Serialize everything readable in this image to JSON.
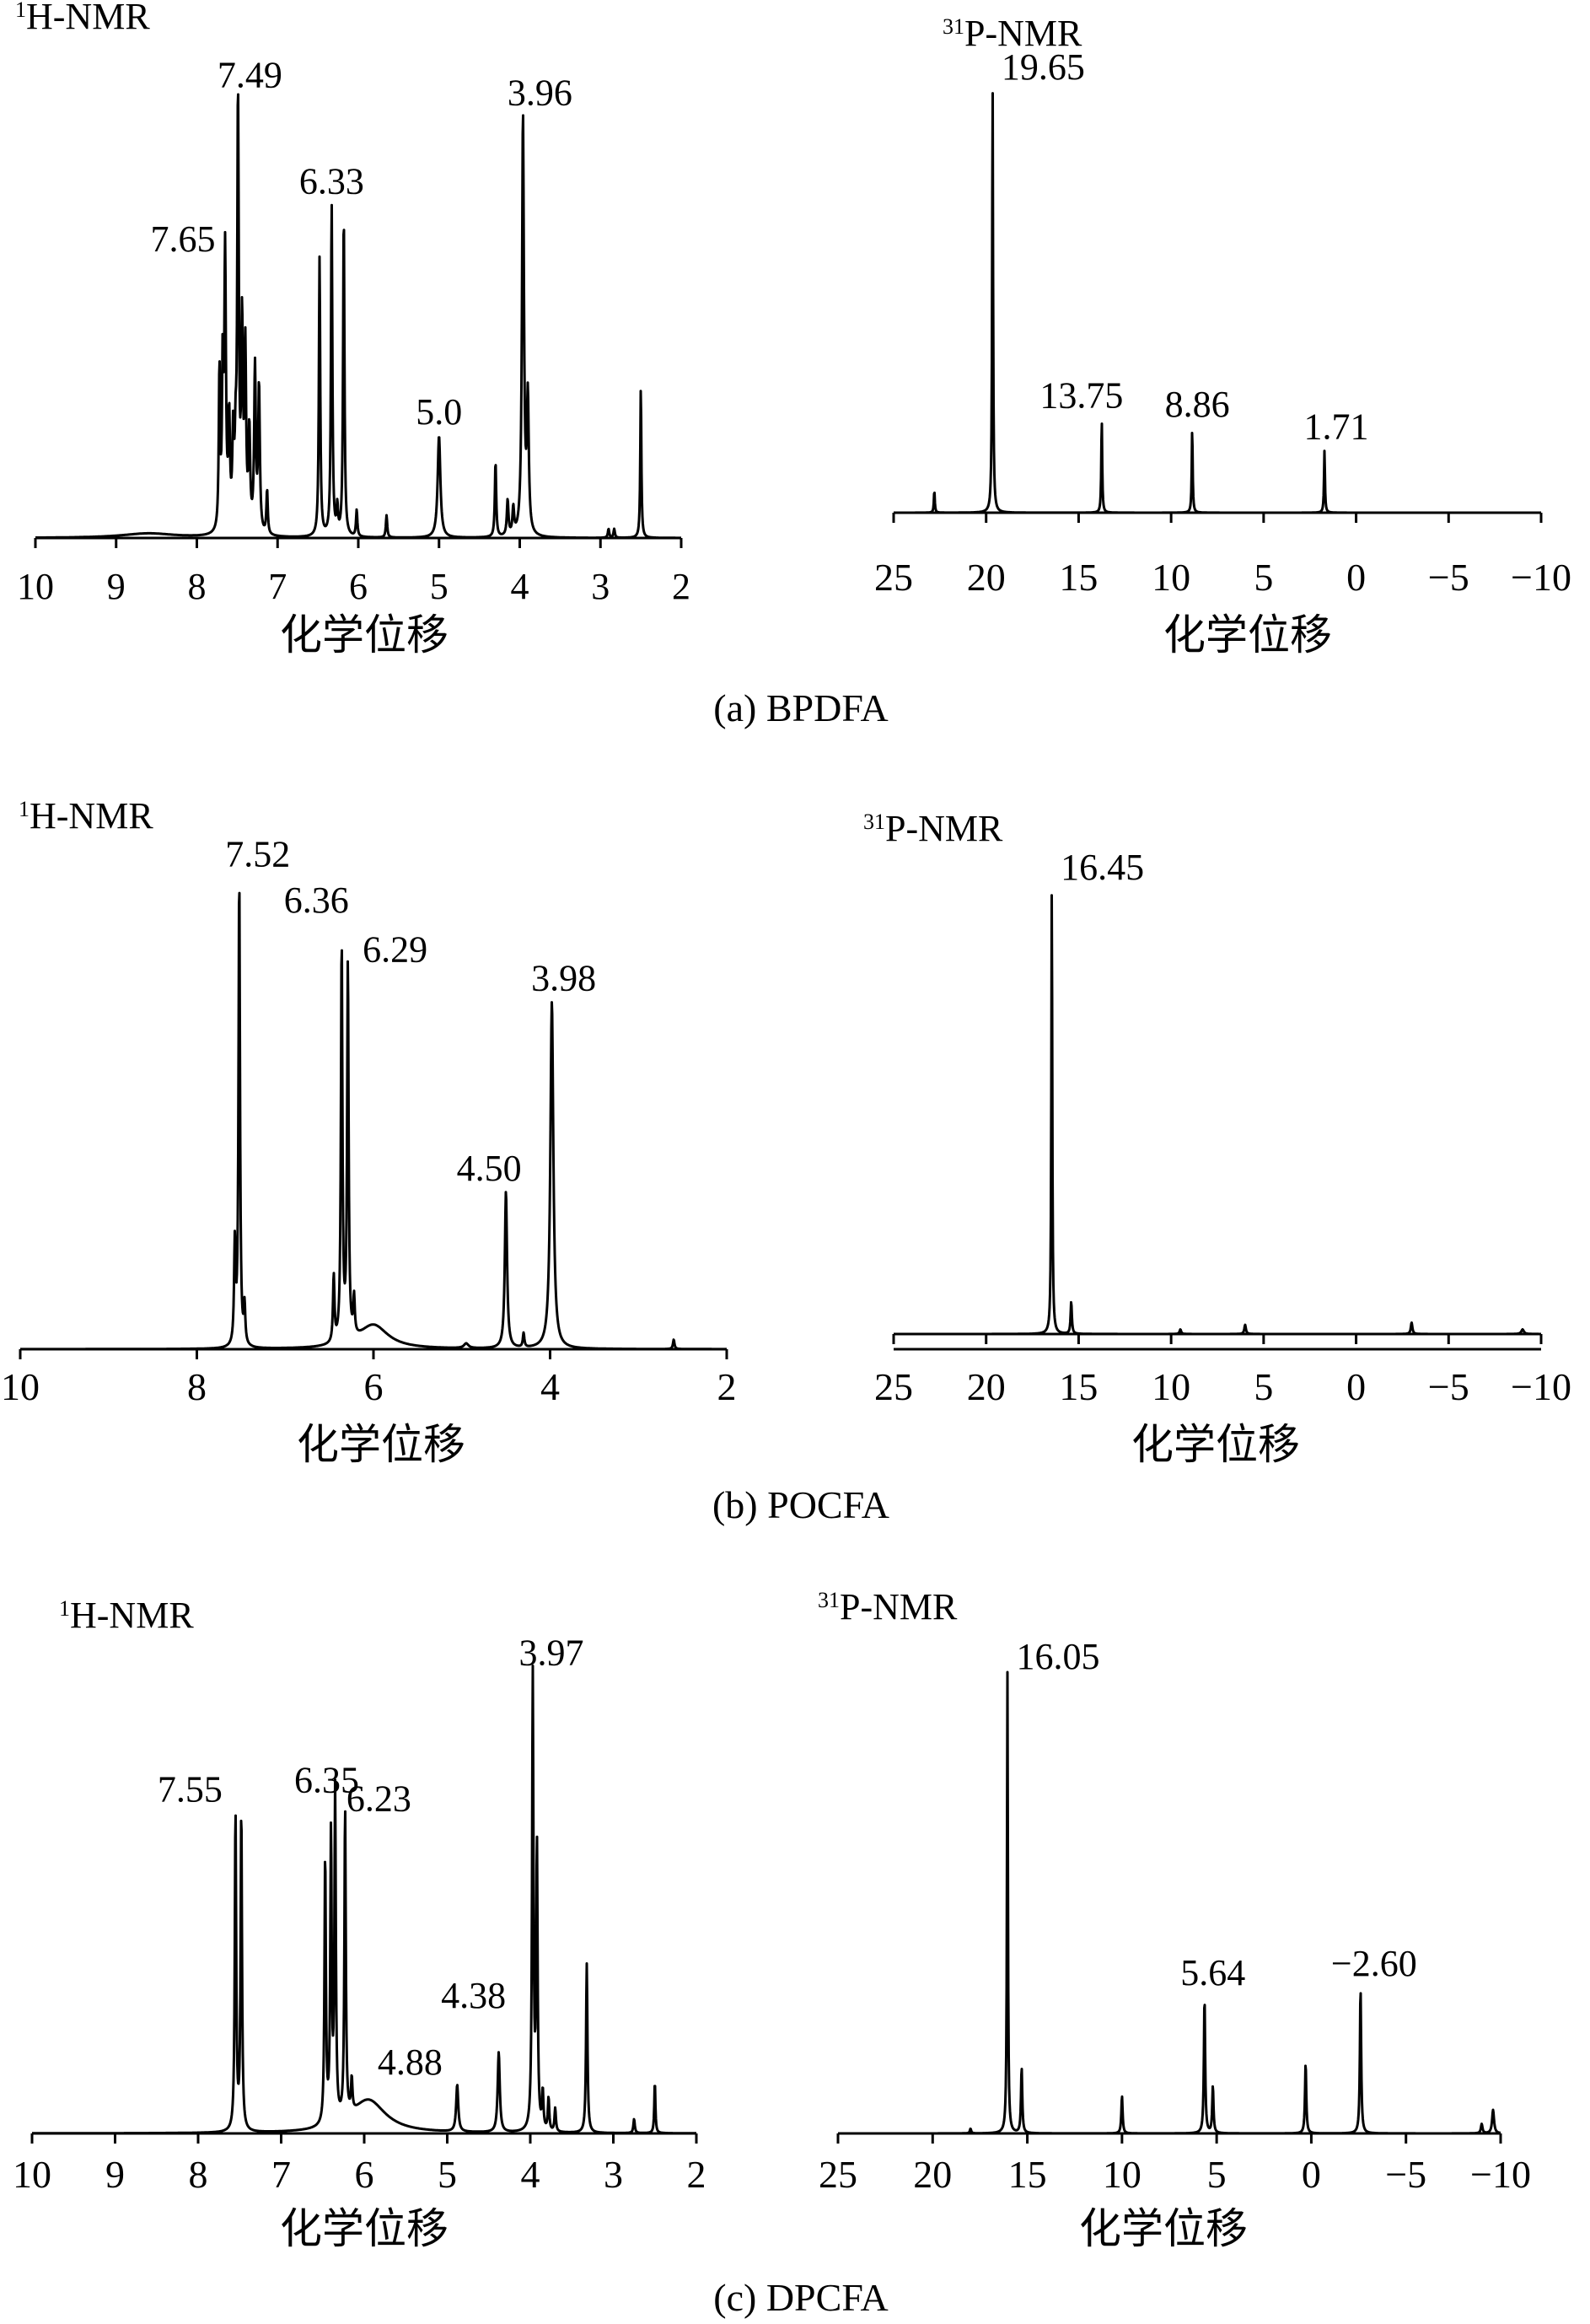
{
  "figure": {
    "colors": {
      "line": "#000000",
      "background": "#ffffff"
    },
    "rows": [
      {
        "caption": "(a) BPDFA",
        "h_nmr": {
          "title_sup": "1",
          "title_main": "H-NMR",
          "chart_data": {
            "type": "line",
            "title": "1H-NMR",
            "xlabel": "化学位移",
            "ylabel": "",
            "xlim": [
              10,
              2
            ],
            "x_reversed": true,
            "xticks": [
              10,
              9,
              8,
              7,
              6,
              5,
              4,
              3,
              2
            ],
            "xtick_labels": [
              "10",
              "9",
              "8",
              "7",
              "6",
              "5",
              "4",
              "3",
              "2"
            ],
            "peaks": [
              {
                "x": 8.6,
                "y": 0.01,
                "w": 0.4,
                "type": "broad"
              },
              {
                "x": 7.72,
                "y": 0.36,
                "w": 0.01
              },
              {
                "x": 7.68,
                "y": 0.35,
                "w": 0.01
              },
              {
                "x": 7.65,
                "y": 0.62,
                "w": 0.012,
                "label": "7.65"
              },
              {
                "x": 7.6,
                "y": 0.24,
                "w": 0.012
              },
              {
                "x": 7.55,
                "y": 0.2,
                "w": 0.012
              },
              {
                "x": 7.52,
                "y": 0.15,
                "w": 0.012
              },
              {
                "x": 7.49,
                "y": 0.99,
                "w": 0.011,
                "label": "7.49"
              },
              {
                "x": 7.44,
                "y": 0.45,
                "w": 0.012
              },
              {
                "x": 7.4,
                "y": 0.4,
                "w": 0.012
              },
              {
                "x": 7.35,
                "y": 0.22,
                "w": 0.012
              },
              {
                "x": 7.28,
                "y": 0.37,
                "w": 0.012
              },
              {
                "x": 7.23,
                "y": 0.33,
                "w": 0.012
              },
              {
                "x": 7.13,
                "y": 0.1,
                "w": 0.01
              },
              {
                "x": 6.48,
                "y": 0.63,
                "w": 0.01
              },
              {
                "x": 6.33,
                "y": 0.75,
                "w": 0.01,
                "label": "6.33"
              },
              {
                "x": 6.26,
                "y": 0.06,
                "w": 0.01
              },
              {
                "x": 6.18,
                "y": 0.73,
                "w": 0.01
              },
              {
                "x": 6.02,
                "y": 0.06,
                "w": 0.01
              },
              {
                "x": 5.65,
                "y": 0.05,
                "w": 0.01
              },
              {
                "x": 5.0,
                "y": 0.23,
                "w": 0.02,
                "label": "5.0"
              },
              {
                "x": 4.3,
                "y": 0.17,
                "w": 0.01
              },
              {
                "x": 4.15,
                "y": 0.08,
                "w": 0.012
              },
              {
                "x": 4.08,
                "y": 0.06,
                "w": 0.012
              },
              {
                "x": 3.96,
                "y": 0.95,
                "w": 0.014,
                "label": "3.96"
              },
              {
                "x": 3.9,
                "y": 0.3,
                "w": 0.014
              },
              {
                "x": 2.9,
                "y": 0.02,
                "w": 0.01
              },
              {
                "x": 2.83,
                "y": 0.02,
                "w": 0.01
              },
              {
                "x": 2.5,
                "y": 0.34,
                "w": 0.008
              }
            ]
          }
        },
        "p_nmr": {
          "title_sup": "31",
          "title_main": "P-NMR",
          "chart_data": {
            "type": "line",
            "title": "31P-NMR",
            "xlabel": "化学位移",
            "ylabel": "",
            "xlim": [
              25,
              -10
            ],
            "x_reversed": true,
            "xticks": [
              25,
              20,
              15,
              10,
              5,
              0,
              -5,
              -10
            ],
            "xtick_labels": [
              "25",
              "20",
              "15",
              "10",
              "5",
              "0",
              "−5",
              "−10"
            ],
            "peaks": [
              {
                "x": 22.8,
                "y": 0.05,
                "w": 0.03
              },
              {
                "x": 19.65,
                "y": 0.97,
                "w": 0.03,
                "label": "19.65"
              },
              {
                "x": 13.75,
                "y": 0.21,
                "w": 0.03,
                "label": "13.75"
              },
              {
                "x": 8.86,
                "y": 0.19,
                "w": 0.03,
                "label": "8.86"
              },
              {
                "x": 1.71,
                "y": 0.14,
                "w": 0.03,
                "label": "1.71"
              }
            ]
          }
        }
      },
      {
        "caption": "(b) POCFA",
        "h_nmr": {
          "title_sup": "1",
          "title_main": "H-NMR",
          "chart_data": {
            "type": "line",
            "title": "1H-NMR",
            "xlabel": "化学位移",
            "ylabel": "",
            "xlim": [
              10,
              2
            ],
            "x_reversed": true,
            "xticks": [
              10,
              8,
              6,
              4,
              2
            ],
            "xtick_labels": [
              "10",
              "8",
              "6",
              "4",
              "2"
            ],
            "peaks": [
              {
                "x": 7.57,
                "y": 0.21,
                "w": 0.01
              },
              {
                "x": 7.52,
                "y": 0.99,
                "w": 0.01,
                "label": "7.52"
              },
              {
                "x": 7.46,
                "y": 0.08,
                "w": 0.01
              },
              {
                "x": 6.45,
                "y": 0.14,
                "w": 0.01
              },
              {
                "x": 6.36,
                "y": 0.84,
                "w": 0.01,
                "label": "6.36"
              },
              {
                "x": 6.29,
                "y": 0.79,
                "w": 0.01,
                "label": "6.29"
              },
              {
                "x": 6.22,
                "y": 0.08,
                "w": 0.01
              },
              {
                "x": 6.0,
                "y": 0.05,
                "w": 0.2,
                "type": "broad"
              },
              {
                "x": 4.95,
                "y": 0.01,
                "w": 0.03
              },
              {
                "x": 4.5,
                "y": 0.33,
                "w": 0.015,
                "label": "4.50"
              },
              {
                "x": 4.3,
                "y": 0.03,
                "w": 0.01
              },
              {
                "x": 3.98,
                "y": 0.73,
                "w": 0.02,
                "label": "3.98"
              },
              {
                "x": 2.6,
                "y": 0.02,
                "w": 0.01
              }
            ]
          }
        },
        "p_nmr": {
          "title_sup": "31",
          "title_main": "P-NMR",
          "chart_data": {
            "type": "line",
            "title": "31P-NMR",
            "xlabel": "化学位移",
            "ylabel": "",
            "xlim": [
              25,
              -10
            ],
            "x_reversed": true,
            "xticks": [
              25,
              20,
              15,
              10,
              5,
              0,
              -5,
              -10
            ],
            "xtick_labels": [
              "25",
              "20",
              "15",
              "10",
              "5",
              "0",
              "−5",
              "−10"
            ],
            "peaks": [
              {
                "x": 16.45,
                "y": 0.98,
                "w": 0.03,
                "label": "16.45"
              },
              {
                "x": 15.4,
                "y": 0.07,
                "w": 0.04
              },
              {
                "x": 9.5,
                "y": 0.01,
                "w": 0.05
              },
              {
                "x": 6.0,
                "y": 0.02,
                "w": 0.05
              },
              {
                "x": -3.0,
                "y": 0.025,
                "w": 0.05
              },
              {
                "x": -9.0,
                "y": 0.01,
                "w": 0.08
              }
            ]
          }
        }
      },
      {
        "caption": "(c) DPCFA",
        "h_nmr": {
          "title_sup": "1",
          "title_main": "H-NMR",
          "chart_data": {
            "type": "line",
            "title": "1H-NMR",
            "xlabel": "化学位移",
            "ylabel": "",
            "xlim": [
              10,
              2
            ],
            "x_reversed": true,
            "xticks": [
              10,
              9,
              8,
              7,
              6,
              5,
              4,
              3,
              2
            ],
            "xtick_labels": [
              "10",
              "9",
              "8",
              "7",
              "6",
              "5",
              "4",
              "3",
              "2"
            ],
            "peaks": [
              {
                "x": 7.55,
                "y": 0.68,
                "w": 0.01,
                "label": "7.55"
              },
              {
                "x": 7.48,
                "y": 0.68,
                "w": 0.01
              },
              {
                "x": 6.47,
                "y": 0.57,
                "w": 0.01
              },
              {
                "x": 6.4,
                "y": 0.61,
                "w": 0.01
              },
              {
                "x": 6.35,
                "y": 0.7,
                "w": 0.01,
                "label": "6.35"
              },
              {
                "x": 6.23,
                "y": 0.66,
                "w": 0.01,
                "label": "6.23"
              },
              {
                "x": 6.15,
                "y": 0.07,
                "w": 0.01
              },
              {
                "x": 5.95,
                "y": 0.07,
                "w": 0.25,
                "type": "broad"
              },
              {
                "x": 4.88,
                "y": 0.1,
                "w": 0.015,
                "label": "4.88"
              },
              {
                "x": 4.38,
                "y": 0.17,
                "w": 0.015,
                "label": "4.38"
              },
              {
                "x": 3.97,
                "y": 0.97,
                "w": 0.01,
                "label": "3.97"
              },
              {
                "x": 3.92,
                "y": 0.6,
                "w": 0.01
              },
              {
                "x": 3.85,
                "y": 0.08,
                "w": 0.01
              },
              {
                "x": 3.78,
                "y": 0.07,
                "w": 0.01
              },
              {
                "x": 3.7,
                "y": 0.05,
                "w": 0.01
              },
              {
                "x": 3.32,
                "y": 0.36,
                "w": 0.01
              },
              {
                "x": 2.75,
                "y": 0.03,
                "w": 0.01
              },
              {
                "x": 2.5,
                "y": 0.11,
                "w": 0.008
              }
            ]
          }
        },
        "p_nmr": {
          "title_sup": "31",
          "title_main": "P-NMR",
          "chart_data": {
            "type": "line",
            "title": "31P-NMR",
            "xlabel": "化学位移",
            "ylabel": "",
            "xlim": [
              25,
              -10
            ],
            "x_reversed": true,
            "xticks": [
              25,
              20,
              15,
              10,
              5,
              0,
              -5,
              -10
            ],
            "xtick_labels": [
              "25",
              "20",
              "15",
              "10",
              "5",
              "0",
              "−5",
              "−10"
            ],
            "peaks": [
              {
                "x": 18.0,
                "y": 0.01,
                "w": 0.04
              },
              {
                "x": 16.05,
                "y": 0.98,
                "w": 0.03,
                "label": "16.05"
              },
              {
                "x": 15.3,
                "y": 0.14,
                "w": 0.04
              },
              {
                "x": 10.0,
                "y": 0.08,
                "w": 0.04
              },
              {
                "x": 5.64,
                "y": 0.29,
                "w": 0.04,
                "label": "5.64"
              },
              {
                "x": 5.2,
                "y": 0.1,
                "w": 0.04
              },
              {
                "x": 0.3,
                "y": 0.15,
                "w": 0.04
              },
              {
                "x": -2.6,
                "y": 0.31,
                "w": 0.04,
                "label": "−2.60"
              },
              {
                "x": -9.0,
                "y": 0.02,
                "w": 0.05
              },
              {
                "x": -9.6,
                "y": 0.05,
                "w": 0.06
              }
            ]
          }
        }
      }
    ]
  }
}
